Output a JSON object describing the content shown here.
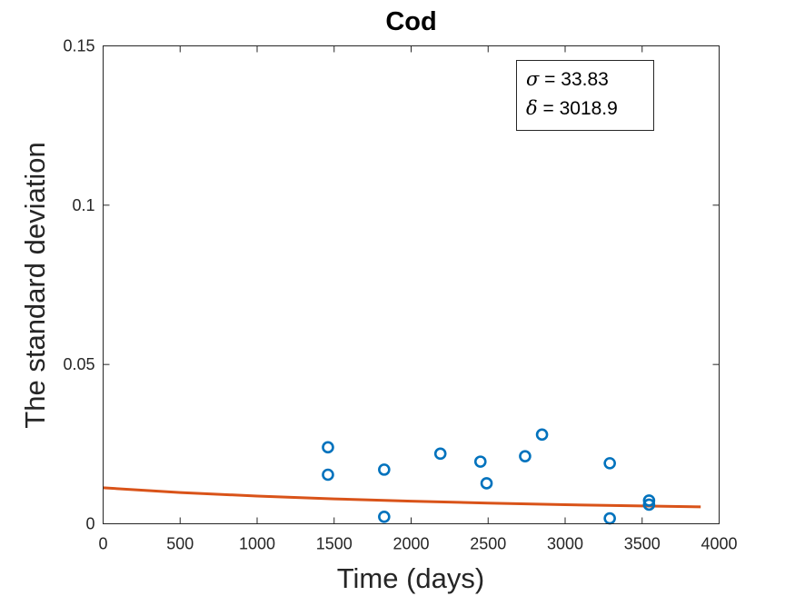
{
  "chart_data": {
    "type": "scatter",
    "title": "Cod",
    "xlabel": "Time (days)",
    "ylabel": "The standard deviation",
    "xlim": [
      0,
      4000
    ],
    "ylim": [
      0,
      0.15
    ],
    "xticks": [
      0,
      500,
      1000,
      1500,
      2000,
      2500,
      3000,
      3500,
      4000
    ],
    "yticks": [
      0,
      0.05,
      0.1,
      0.15
    ],
    "xtick_labels": [
      "0",
      "500",
      "1000",
      "1500",
      "2000",
      "2500",
      "3000",
      "3500",
      "4000"
    ],
    "ytick_labels": [
      "0",
      "0.05",
      "0.1",
      "0.15"
    ],
    "grid": false,
    "series": [
      {
        "type": "scatter",
        "marker": "open-circle",
        "color": "#0072BD",
        "points": [
          {
            "x": 1460,
            "y": 0.024
          },
          {
            "x": 1460,
            "y": 0.0154
          },
          {
            "x": 1825,
            "y": 0.017
          },
          {
            "x": 1825,
            "y": 0.0022
          },
          {
            "x": 2190,
            "y": 0.022
          },
          {
            "x": 2450,
            "y": 0.0195
          },
          {
            "x": 2490,
            "y": 0.0127
          },
          {
            "x": 2740,
            "y": 0.0212
          },
          {
            "x": 2850,
            "y": 0.028
          },
          {
            "x": 3290,
            "y": 0.019
          },
          {
            "x": 3290,
            "y": 0.0017
          },
          {
            "x": 3545,
            "y": 0.0073
          },
          {
            "x": 3545,
            "y": 0.006
          }
        ]
      },
      {
        "type": "line",
        "color": "#D95319",
        "x": [
          0,
          500,
          1000,
          1500,
          2000,
          2500,
          3000,
          3500,
          3880
        ],
        "y": [
          0.0113,
          0.0098,
          0.0087,
          0.0078,
          0.0071,
          0.0065,
          0.006,
          0.0056,
          0.0053
        ]
      }
    ],
    "annotation": {
      "legend_position": "top-right",
      "lines": [
        {
          "symbol": "σ",
          "text": " = 33.83"
        },
        {
          "symbol": "δ",
          "text": " = 3018.9"
        }
      ]
    }
  }
}
